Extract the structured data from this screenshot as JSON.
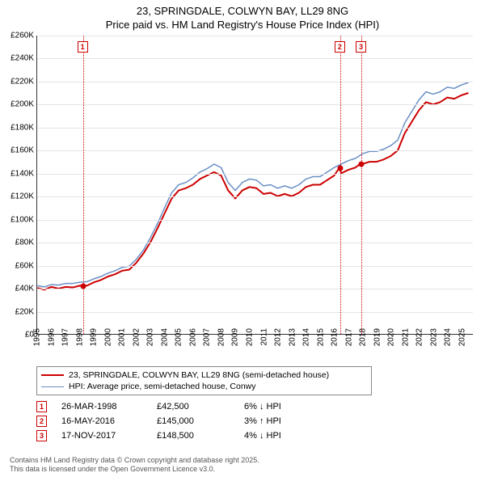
{
  "title_line1": "23, SPRINGDALE, COLWYN BAY, LL29 8NG",
  "title_line2": "Price paid vs. HM Land Registry's House Price Index (HPI)",
  "chart": {
    "type": "line",
    "background_color": "#ffffff",
    "grid_color": "#e5e5e5",
    "axis_color": "#333333",
    "x_year_min": 1995,
    "x_year_max": 2025.8,
    "x_ticks": [
      1995,
      1996,
      1997,
      1998,
      1999,
      2000,
      2001,
      2002,
      2003,
      2004,
      2005,
      2006,
      2007,
      2008,
      2009,
      2010,
      2011,
      2012,
      2013,
      2014,
      2015,
      2016,
      2017,
      2018,
      2019,
      2020,
      2021,
      2022,
      2023,
      2024,
      2025
    ],
    "y_min": 0,
    "y_max": 260000,
    "y_tick_step": 20000,
    "y_tick_labels": [
      "£0",
      "£20K",
      "£40K",
      "£60K",
      "£80K",
      "£100K",
      "£120K",
      "£140K",
      "£160K",
      "£180K",
      "£200K",
      "£220K",
      "£240K",
      "£260K"
    ],
    "label_fontsize": 10,
    "series": [
      {
        "name": "23, SPRINGDALE, COLWYN BAY, LL29 8NG (semi-detached house)",
        "color": "#cc0000",
        "width": 2,
        "points": [
          [
            1995.0,
            40000
          ],
          [
            1995.5,
            38500
          ],
          [
            1996.0,
            41000
          ],
          [
            1996.5,
            39500
          ],
          [
            1997.0,
            41000
          ],
          [
            1997.5,
            40500
          ],
          [
            1998.0,
            42000
          ],
          [
            1998.23,
            42500
          ],
          [
            1998.5,
            42000
          ],
          [
            1999.0,
            45000
          ],
          [
            1999.5,
            47000
          ],
          [
            2000.0,
            50000
          ],
          [
            2000.5,
            52000
          ],
          [
            2001.0,
            55000
          ],
          [
            2001.5,
            56000
          ],
          [
            2002.0,
            62000
          ],
          [
            2002.5,
            70000
          ],
          [
            2003.0,
            80000
          ],
          [
            2003.5,
            92000
          ],
          [
            2004.0,
            105000
          ],
          [
            2004.5,
            118000
          ],
          [
            2005.0,
            125000
          ],
          [
            2005.5,
            127000
          ],
          [
            2006.0,
            130000
          ],
          [
            2006.5,
            135000
          ],
          [
            2007.0,
            138000
          ],
          [
            2007.5,
            141000
          ],
          [
            2008.0,
            138000
          ],
          [
            2008.5,
            125000
          ],
          [
            2009.0,
            118000
          ],
          [
            2009.5,
            125000
          ],
          [
            2010.0,
            128000
          ],
          [
            2010.5,
            127000
          ],
          [
            2011.0,
            122000
          ],
          [
            2011.5,
            123000
          ],
          [
            2012.0,
            120000
          ],
          [
            2012.5,
            122000
          ],
          [
            2013.0,
            120000
          ],
          [
            2013.5,
            123000
          ],
          [
            2014.0,
            128000
          ],
          [
            2014.5,
            130000
          ],
          [
            2015.0,
            130000
          ],
          [
            2015.5,
            134000
          ],
          [
            2016.0,
            138000
          ],
          [
            2016.38,
            145000
          ],
          [
            2016.5,
            140000
          ],
          [
            2017.0,
            143000
          ],
          [
            2017.5,
            145000
          ],
          [
            2017.88,
            148500
          ],
          [
            2018.0,
            148000
          ],
          [
            2018.5,
            150000
          ],
          [
            2019.0,
            150000
          ],
          [
            2019.5,
            152000
          ],
          [
            2020.0,
            155000
          ],
          [
            2020.5,
            160000
          ],
          [
            2021.0,
            175000
          ],
          [
            2021.5,
            185000
          ],
          [
            2022.0,
            195000
          ],
          [
            2022.5,
            202000
          ],
          [
            2023.0,
            200000
          ],
          [
            2023.5,
            202000
          ],
          [
            2024.0,
            206000
          ],
          [
            2024.5,
            205000
          ],
          [
            2025.0,
            208000
          ],
          [
            2025.5,
            210000
          ]
        ]
      },
      {
        "name": "HPI: Average price, semi-detached house, Conwy",
        "color": "#6a8fc5",
        "width": 1.5,
        "points": [
          [
            1995.0,
            42000
          ],
          [
            1995.5,
            41000
          ],
          [
            1996.0,
            43000
          ],
          [
            1996.5,
            42500
          ],
          [
            1997.0,
            44000
          ],
          [
            1997.5,
            44000
          ],
          [
            1998.0,
            45000
          ],
          [
            1998.5,
            45500
          ],
          [
            1999.0,
            48000
          ],
          [
            1999.5,
            50000
          ],
          [
            2000.0,
            53000
          ],
          [
            2000.5,
            55000
          ],
          [
            2001.0,
            58000
          ],
          [
            2001.5,
            59000
          ],
          [
            2002.0,
            65000
          ],
          [
            2002.5,
            73000
          ],
          [
            2003.0,
            84000
          ],
          [
            2003.5,
            96000
          ],
          [
            2004.0,
            110000
          ],
          [
            2004.5,
            123000
          ],
          [
            2005.0,
            130000
          ],
          [
            2005.5,
            132000
          ],
          [
            2006.0,
            136000
          ],
          [
            2006.5,
            141000
          ],
          [
            2007.0,
            144000
          ],
          [
            2007.5,
            148000
          ],
          [
            2008.0,
            145000
          ],
          [
            2008.5,
            132000
          ],
          [
            2009.0,
            125000
          ],
          [
            2009.5,
            132000
          ],
          [
            2010.0,
            135000
          ],
          [
            2010.5,
            134000
          ],
          [
            2011.0,
            129000
          ],
          [
            2011.5,
            130000
          ],
          [
            2012.0,
            127000
          ],
          [
            2012.5,
            129000
          ],
          [
            2013.0,
            127000
          ],
          [
            2013.5,
            130000
          ],
          [
            2014.0,
            135000
          ],
          [
            2014.5,
            137000
          ],
          [
            2015.0,
            137000
          ],
          [
            2015.5,
            141000
          ],
          [
            2016.0,
            145000
          ],
          [
            2016.5,
            148000
          ],
          [
            2017.0,
            151000
          ],
          [
            2017.5,
            153000
          ],
          [
            2018.0,
            157000
          ],
          [
            2018.5,
            159000
          ],
          [
            2019.0,
            159000
          ],
          [
            2019.5,
            161000
          ],
          [
            2020.0,
            164000
          ],
          [
            2020.5,
            169000
          ],
          [
            2021.0,
            184000
          ],
          [
            2021.5,
            194000
          ],
          [
            2022.0,
            204000
          ],
          [
            2022.5,
            211000
          ],
          [
            2023.0,
            209000
          ],
          [
            2023.5,
            211000
          ],
          [
            2024.0,
            215000
          ],
          [
            2024.5,
            214000
          ],
          [
            2025.0,
            217000
          ],
          [
            2025.5,
            219000
          ]
        ]
      }
    ],
    "vlines": [
      {
        "year": 1998.23,
        "num": "1",
        "dot_y": 42500
      },
      {
        "year": 2016.38,
        "num": "2",
        "dot_y": 145000
      },
      {
        "year": 2017.88,
        "num": "3",
        "dot_y": 148500
      }
    ],
    "marker_box_top_offset": 7,
    "dot_color": "#cc0000"
  },
  "legend": {
    "rows": [
      {
        "color": "#cc0000",
        "width": 2,
        "text": "23, SPRINGDALE, COLWYN BAY, LL29 8NG (semi-detached house)"
      },
      {
        "color": "#6a8fc5",
        "width": 1.5,
        "text": "HPI: Average price, semi-detached house, Conwy"
      }
    ]
  },
  "events": [
    {
      "num": "1",
      "date": "26-MAR-1998",
      "price": "£42,500",
      "change": "6% ↓ HPI"
    },
    {
      "num": "2",
      "date": "16-MAY-2016",
      "price": "£145,000",
      "change": "3% ↑ HPI"
    },
    {
      "num": "3",
      "date": "17-NOV-2017",
      "price": "£148,500",
      "change": "4% ↓ HPI"
    }
  ],
  "footer_line1": "Contains HM Land Registry data © Crown copyright and database right 2025.",
  "footer_line2": "This data is licensed under the Open Government Licence v3.0."
}
